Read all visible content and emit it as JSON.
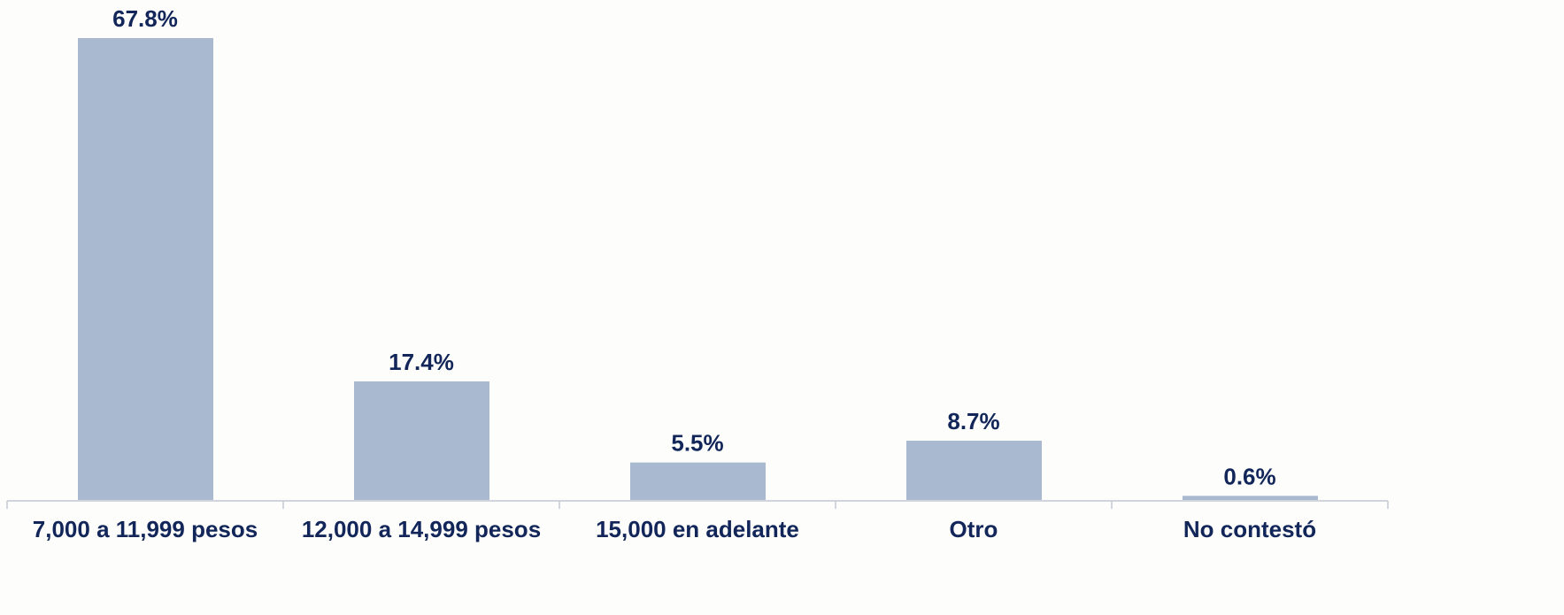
{
  "chart_data": {
    "type": "bar",
    "categories": [
      "7,000 a 11,999 pesos",
      "12,000 a 14,999 pesos",
      "15,000 en adelante",
      "Otro",
      "No contestó"
    ],
    "values": [
      67.8,
      17.4,
      5.5,
      8.7,
      0.6
    ],
    "value_labels": [
      "67.8%",
      "17.4%",
      "5.5%",
      "8.7%",
      "0.6%"
    ],
    "color": "#a9b9d0"
  }
}
